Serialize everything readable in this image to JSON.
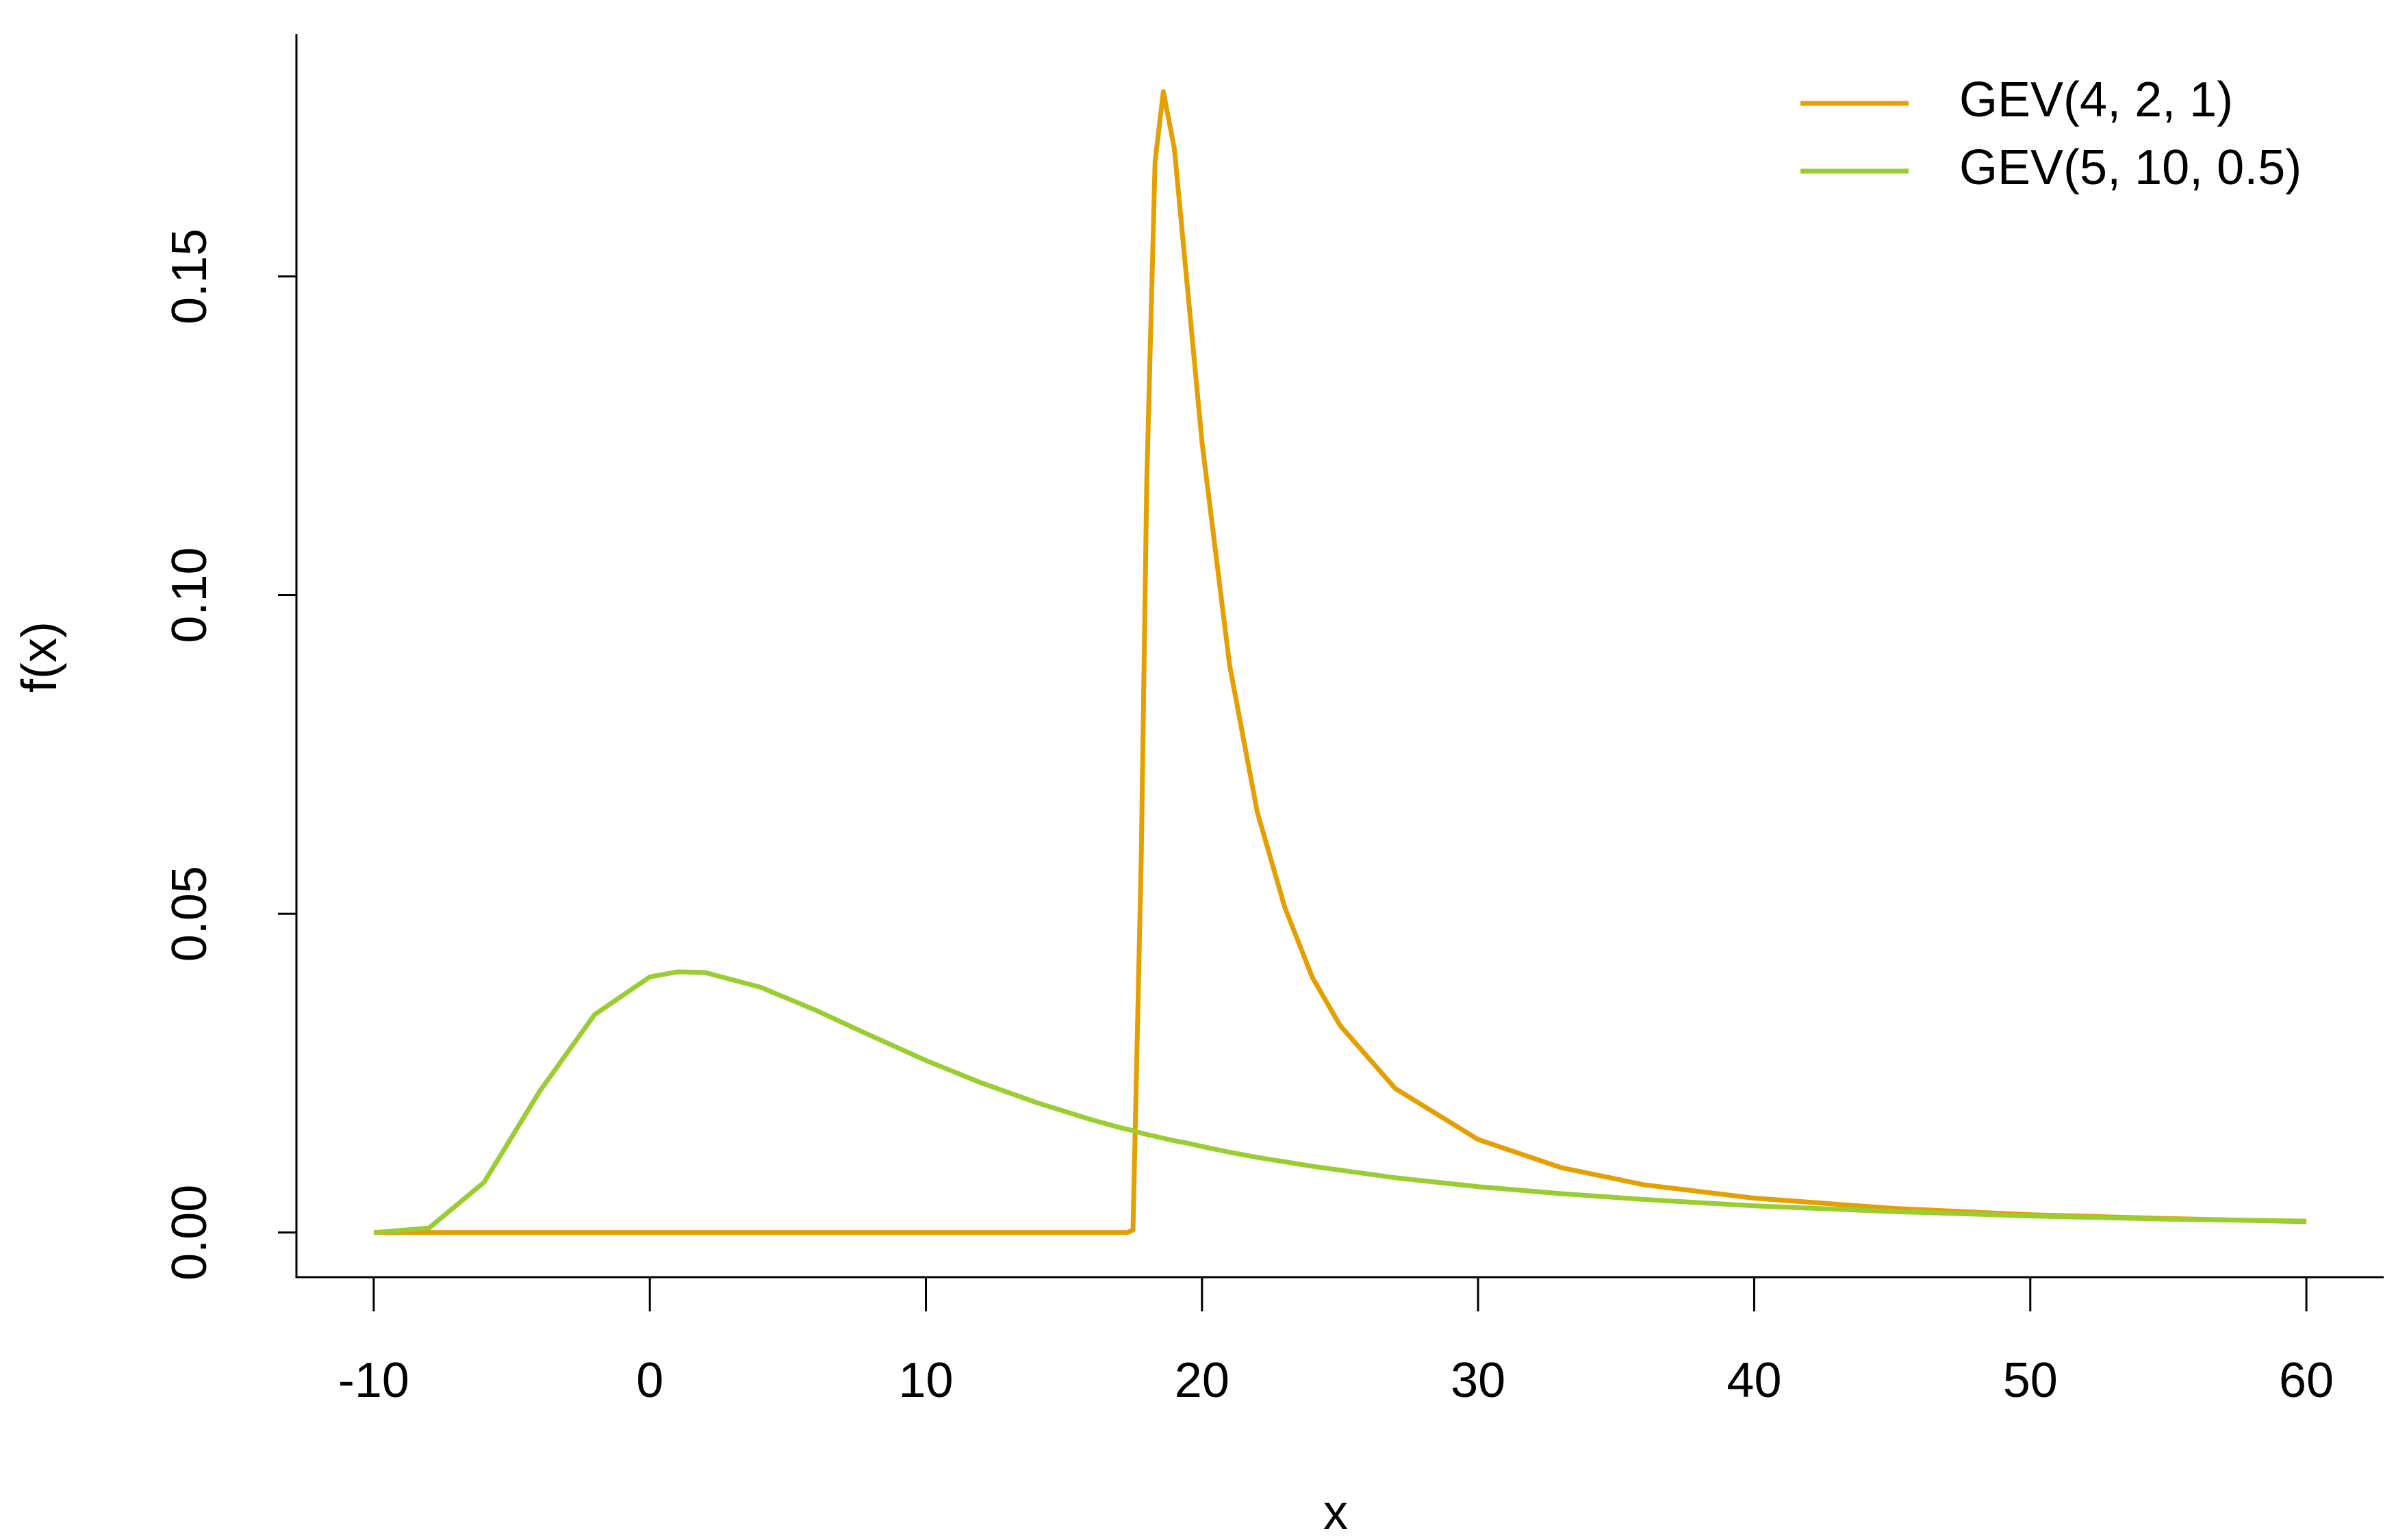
{
  "chart_data": {
    "type": "line",
    "xlabel": "x",
    "ylabel": "f(x)",
    "x": [
      -10,
      -8,
      -6,
      -4,
      -2,
      0,
      1,
      2,
      4,
      6,
      8,
      10,
      12,
      14,
      16,
      17,
      17.3,
      17.5,
      17.8,
      18,
      18.3,
      18.6,
      19,
      19.5,
      20,
      21,
      22,
      23,
      24,
      25,
      27,
      30,
      33,
      36,
      40,
      45,
      50,
      55,
      60
    ],
    "series": [
      {
        "name": "GEV(4, 2, 1)",
        "color": "#E69F00",
        "values": [
          0,
          0,
          0,
          0,
          0,
          0,
          0,
          0,
          0,
          0,
          0,
          0,
          0,
          0,
          0,
          0,
          0,
          0.0004,
          0.059,
          0.118,
          0.168,
          0.179,
          0.17,
          0.147,
          0.124,
          0.089,
          0.066,
          0.051,
          0.04,
          0.0325,
          0.0226,
          0.0146,
          0.0102,
          0.0075,
          0.0054,
          0.0038,
          0.0028,
          0.0022,
          0.0017
        ]
      },
      {
        "name": "GEV(5, 10, 0.5)",
        "color": "#9ACD32",
        "values": [
          0,
          0.0007,
          0.0079,
          0.0221,
          0.0342,
          0.0401,
          0.0409,
          0.0408,
          0.0385,
          0.0349,
          0.0309,
          0.027,
          0.0235,
          0.0204,
          0.0177,
          0.0165,
          0.0162,
          0.016,
          0.0156,
          0.0154,
          0.0151,
          0.0148,
          0.0144,
          0.014,
          0.0135,
          0.0126,
          0.0118,
          0.0111,
          0.0104,
          0.0098,
          0.0086,
          0.0072,
          0.0061,
          0.0052,
          0.0042,
          0.0033,
          0.0026,
          0.0021,
          0.0018
        ]
      }
    ],
    "xlim": [
      -12.8,
      62.8
    ],
    "xticks": [
      -10,
      0,
      10,
      20,
      30,
      40,
      50,
      60
    ],
    "ylim": [
      -0.007,
      0.188
    ],
    "yticks": [
      {
        "value": 0,
        "label": "0.00"
      },
      {
        "value": 0.05,
        "label": "0.05"
      },
      {
        "value": 0.1,
        "label": "0.10"
      },
      {
        "value": 0.15,
        "label": "0.15"
      }
    ],
    "grid": false,
    "legend": "topright"
  }
}
